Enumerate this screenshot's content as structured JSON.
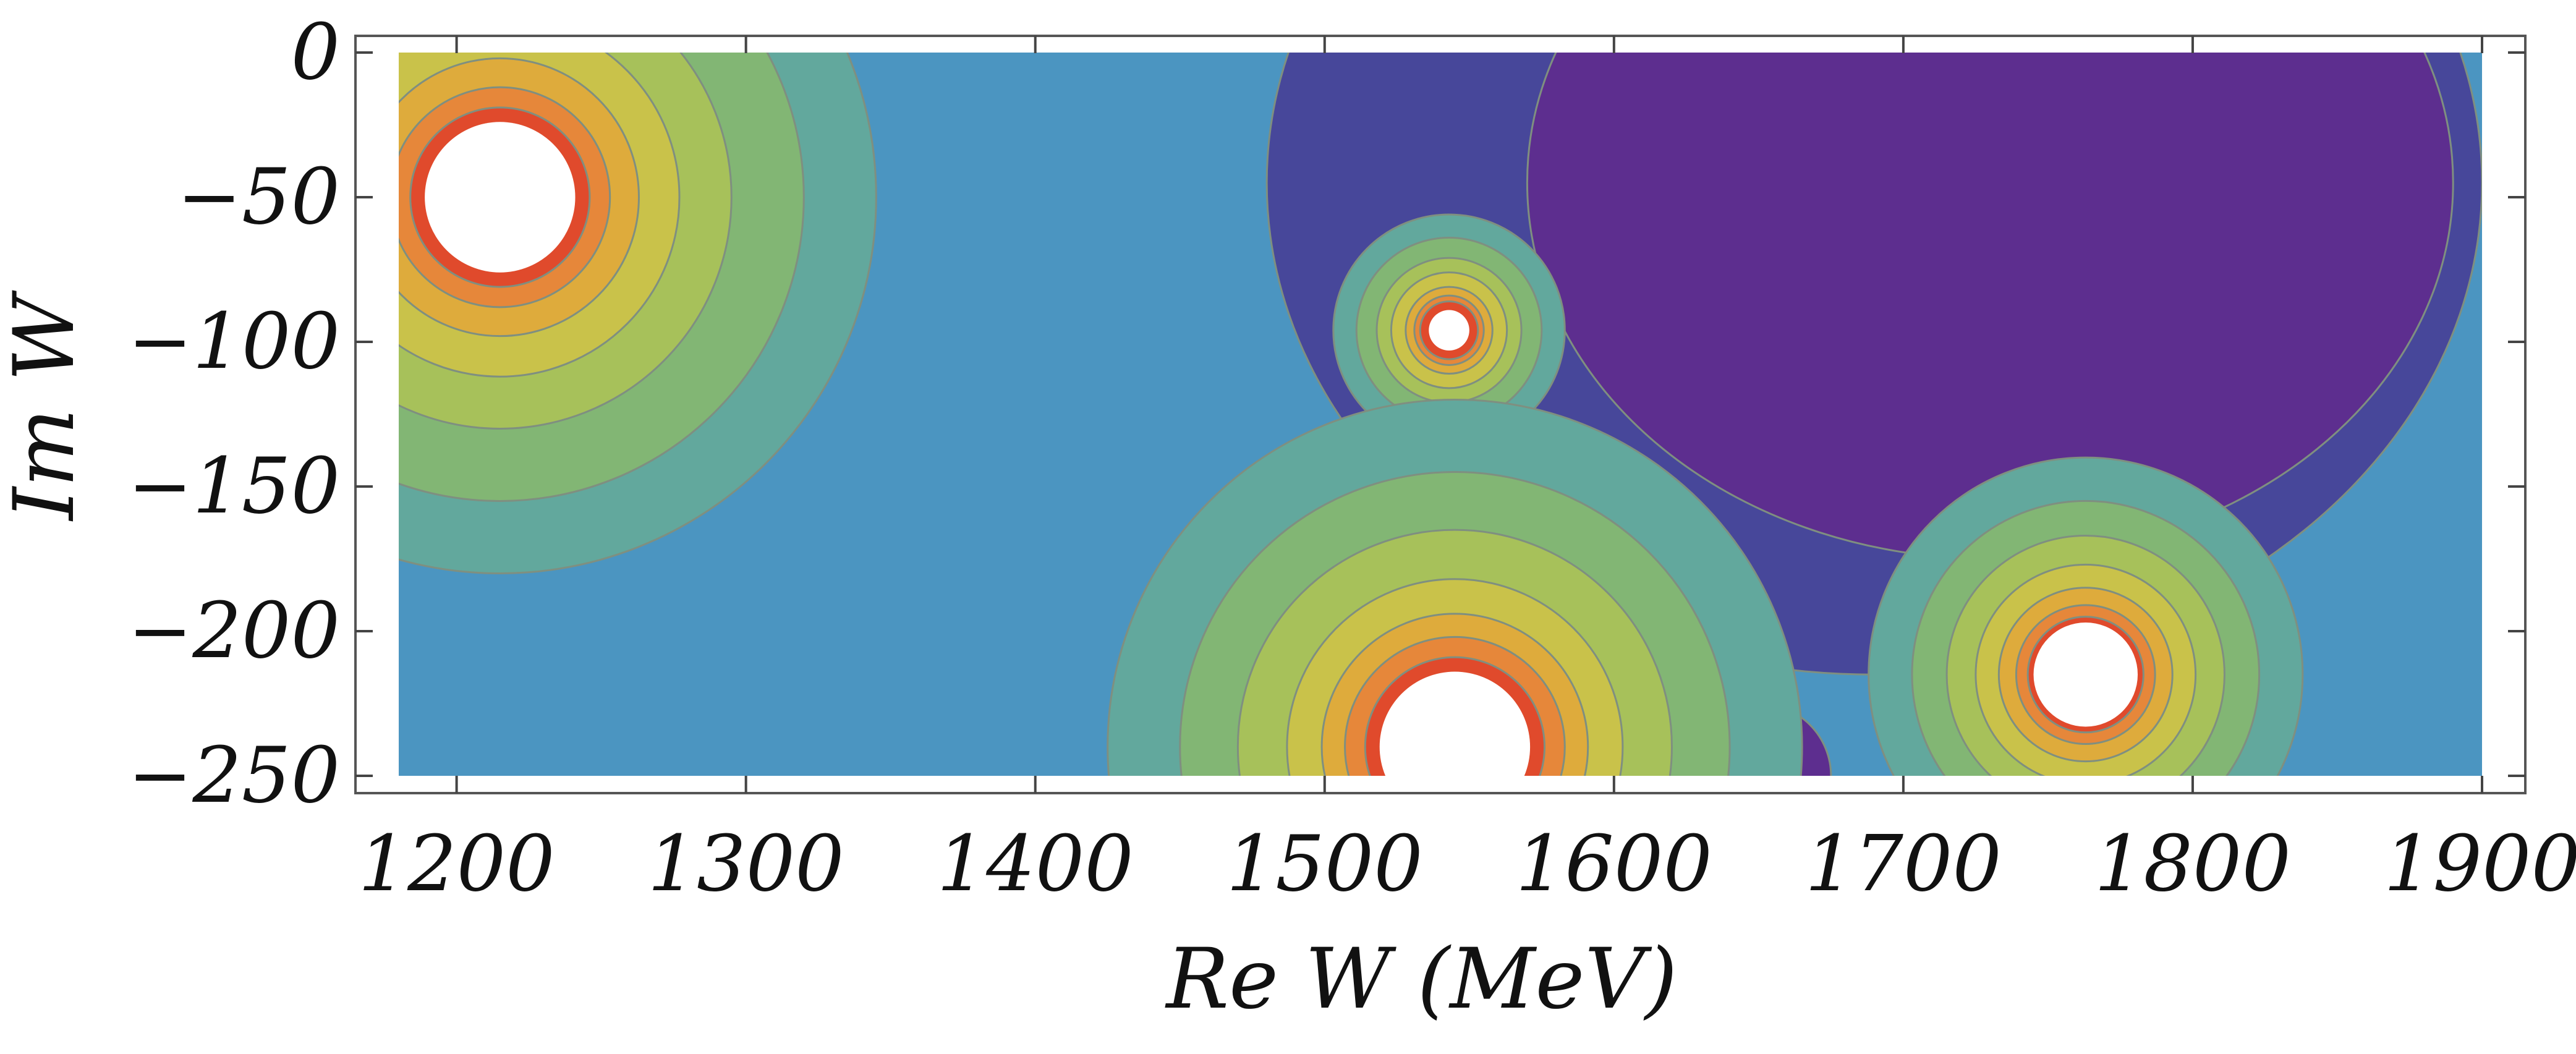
{
  "chart_data": {
    "type": "contour",
    "xlabel": "Re W (MeV)",
    "ylabel": "Im W",
    "xlim": [
      1180,
      1900
    ],
    "ylim": [
      -250,
      0
    ],
    "x_ticks": [
      1200,
      1300,
      1400,
      1500,
      1600,
      1700,
      1800,
      1900
    ],
    "y_ticks": [
      0,
      -50,
      -100,
      -150,
      -200,
      -250
    ],
    "x_tick_labels": [
      "1200",
      "1300",
      "1400",
      "1500",
      "1600",
      "1700",
      "1800",
      "1900"
    ],
    "y_tick_labels": [
      "0",
      "−50",
      "−100",
      "−150",
      "−200",
      "−250"
    ],
    "poles": [
      {
        "re": 1215,
        "im": -50
      },
      {
        "re": 1543,
        "im": -96
      },
      {
        "re": 1545,
        "im": -240
      },
      {
        "re": 1763,
        "im": -215
      }
    ],
    "minima_regions": [
      {
        "re": 1690,
        "im": -65
      },
      {
        "re": 1650,
        "im": -250
      }
    ],
    "colormap": [
      "#5d2e8f",
      "#47479a",
      "#4667ae",
      "#4b95c1",
      "#62a89d",
      "#82b674",
      "#a7c15a",
      "#c9c24a",
      "#deab3c",
      "#e6873a",
      "#e04a2c",
      "#ffffff"
    ],
    "contour_line_color": "#7f8f80",
    "grid": false
  }
}
